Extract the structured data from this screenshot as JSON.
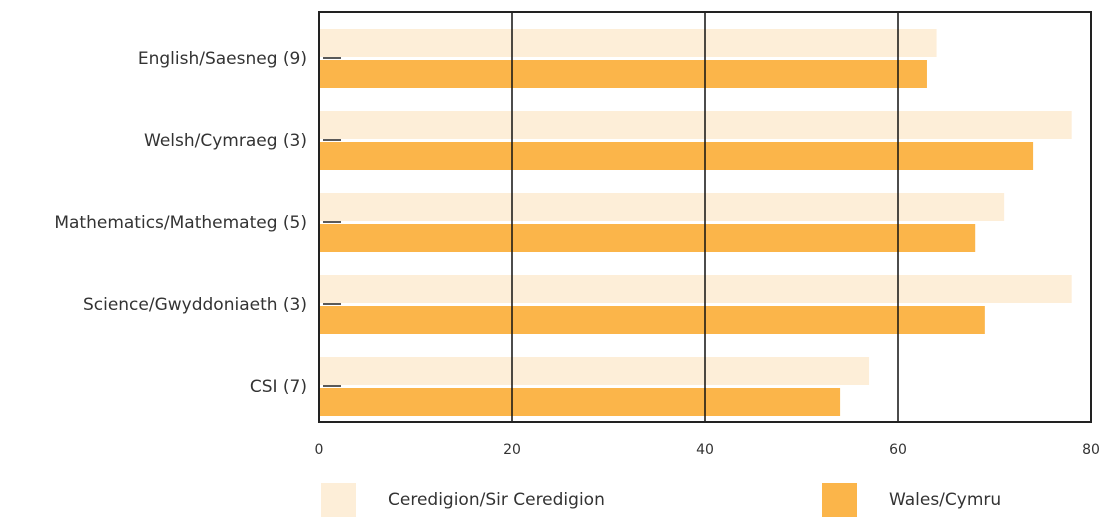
{
  "chart_data": {
    "type": "bar",
    "orientation": "horizontal",
    "categories": [
      "English/Saesneg (9)",
      "Welsh/Cymraeg (3)",
      "Mathematics/Mathemateg (5)",
      "Science/Gwyddoniaeth (3)",
      "CSI (7)"
    ],
    "series": [
      {
        "name": "Ceredigion/Sir Ceredigion",
        "color": "#fdeed8",
        "values": [
          64,
          78,
          71,
          78,
          57
        ]
      },
      {
        "name": "Wales/Cymru",
        "color": "#fbb54a",
        "values": [
          63,
          74,
          68,
          69,
          54
        ]
      }
    ],
    "xlim": [
      0,
      80
    ],
    "xticks": [
      0,
      20,
      40,
      60,
      80
    ],
    "grid": true
  }
}
